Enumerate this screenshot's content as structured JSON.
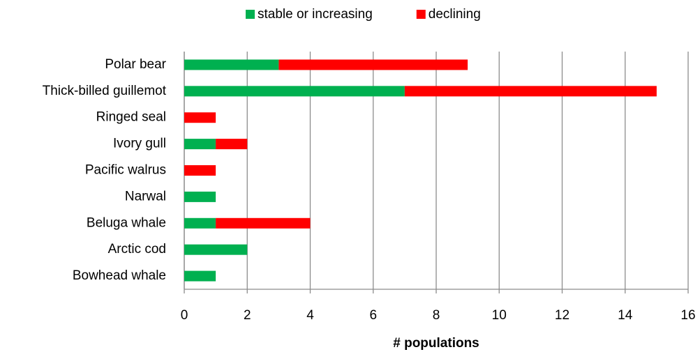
{
  "chart_data": {
    "type": "bar",
    "orientation": "horizontal",
    "stacked": true,
    "x_label": "# populations",
    "categories": [
      "Polar bear",
      "Thick-billed guillemot",
      "Ringed seal",
      "Ivory gull",
      "Pacific walrus",
      "Narwal",
      "Beluga whale",
      "Arctic cod",
      "Bowhead whale"
    ],
    "series": [
      {
        "name": "stable or increasing",
        "color": "#00b050",
        "values": [
          3,
          7,
          0,
          1,
          0,
          1,
          1,
          2,
          1
        ]
      },
      {
        "name": "declining",
        "color": "#ff0000",
        "values": [
          6,
          8,
          1,
          1,
          1,
          0,
          3,
          0,
          0
        ]
      }
    ],
    "xlim": [
      0,
      16
    ],
    "xticks": [
      0,
      2,
      4,
      6,
      8,
      10,
      12,
      14,
      16
    ],
    "grid": true,
    "legend": "top"
  }
}
